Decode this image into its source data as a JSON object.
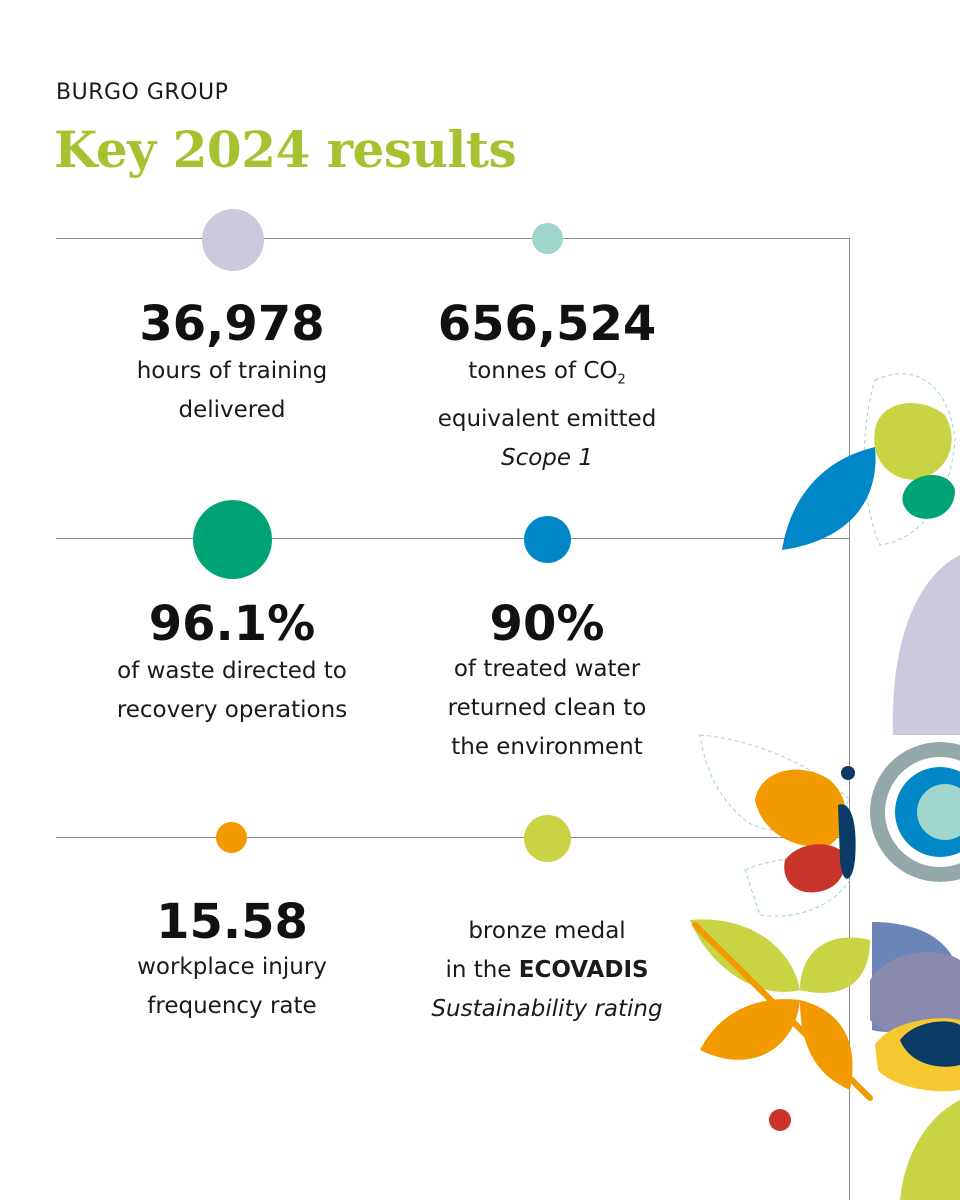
{
  "header": {
    "eyebrow": "BURGO GROUP",
    "title": "Key 2024 results"
  },
  "stats": [
    {
      "value": "36,978",
      "line1": "hours of training",
      "line2": "delivered"
    },
    {
      "value": "656,524",
      "line1_a": "tonnes of CO",
      "line1_sub": "2",
      "line2": "equivalent emitted",
      "line3": "Scope 1"
    },
    {
      "value": "96.1%",
      "line1": "of waste directed to",
      "line2": "recovery operations"
    },
    {
      "value": "90%",
      "line1": "of treated water",
      "line2": "returned clean to",
      "line3": "the environment"
    },
    {
      "value": "15.58",
      "line1": "workplace injury",
      "line2": "frequency rate"
    },
    {
      "line1": "bronze medal",
      "line2_a": "in the ",
      "line2_b": "ECOVADIS",
      "line3": "Sustainability rating"
    }
  ],
  "colors": {
    "title_green": "#a7c230",
    "lavender": "#cdc8dc",
    "mint": "#9fd5cb",
    "green": "#00a474",
    "blue": "#0087c8",
    "orange": "#f29a00",
    "lime": "#c8d444"
  }
}
